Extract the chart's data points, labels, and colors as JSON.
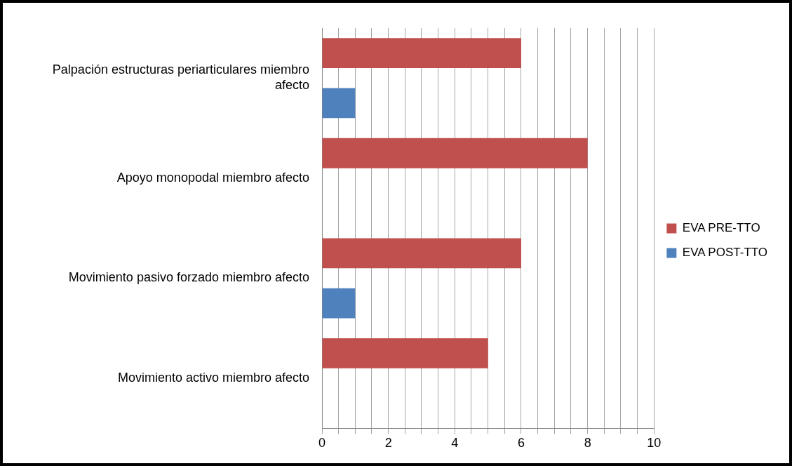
{
  "chart_data": {
    "type": "bar",
    "orientation": "horizontal",
    "categories": [
      "Palpación estructuras periarticulares miembro afecto",
      "Apoyo monopodal miembro afecto",
      "Movimiento pasivo forzado miembro afecto",
      "Movimiento activo miembro afecto"
    ],
    "series": [
      {
        "name": "EVA PRE-TTO",
        "color": "#c0504d",
        "values": [
          6,
          8,
          6,
          5
        ]
      },
      {
        "name": "EVA POST-TTO",
        "color": "#4f81bd",
        "values": [
          1,
          0,
          1,
          0
        ]
      }
    ],
    "xlim": [
      0,
      10
    ],
    "xticks": [
      0,
      {
        "value": 0.5,
        "label": null
      },
      {
        "value": 1,
        "label": null
      },
      {
        "value": 1.5,
        "label": null
      },
      2,
      {
        "value": 2.5,
        "label": null
      },
      {
        "value": 3,
        "label": null
      },
      {
        "value": 3.5,
        "label": null
      },
      4,
      {
        "value": 4.5,
        "label": null
      },
      {
        "value": 5,
        "label": null
      },
      {
        "value": 5.5,
        "label": null
      },
      6,
      {
        "value": 6.5,
        "label": null
      },
      {
        "value": 7,
        "label": null
      },
      {
        "value": 7.5,
        "label": null
      },
      8,
      {
        "value": 8.5,
        "label": null
      },
      {
        "value": 9,
        "label": null
      },
      {
        "value": 9.5,
        "label": null
      },
      10
    ],
    "grid": "x",
    "legend": "right"
  }
}
